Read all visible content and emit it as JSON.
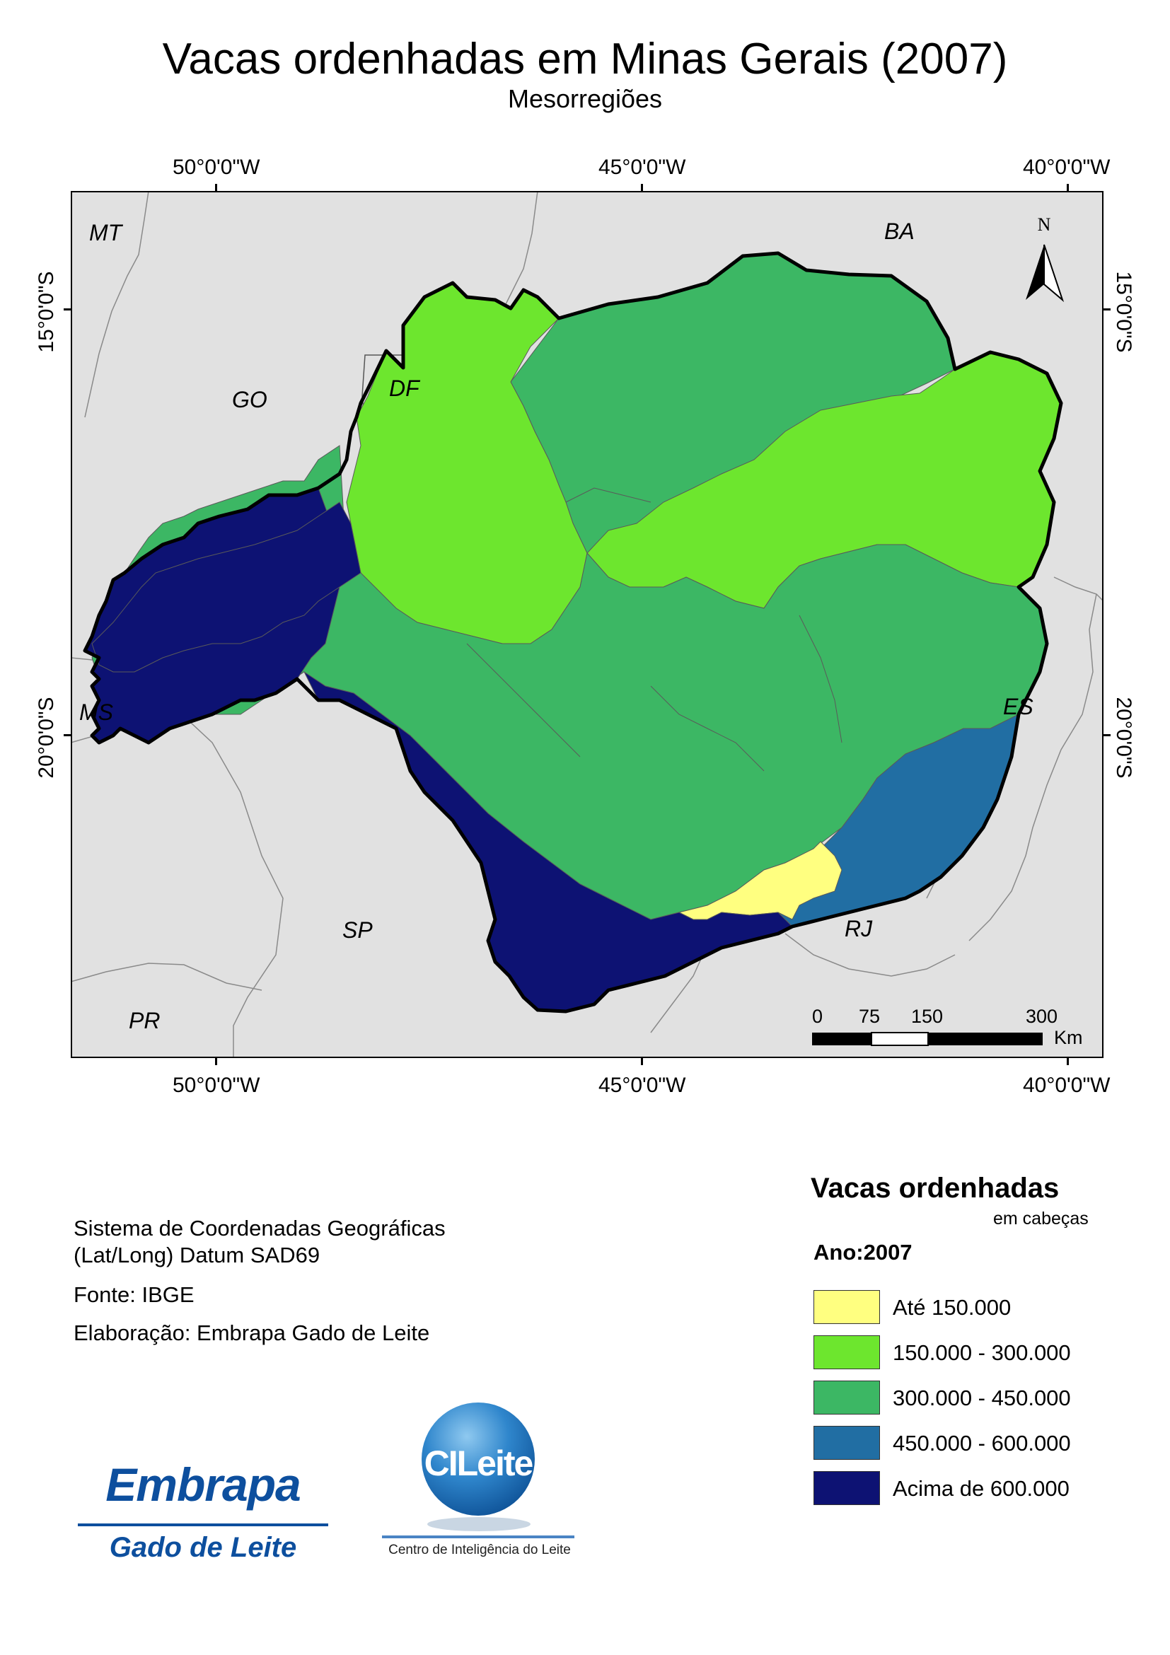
{
  "title": "Vacas ordenhadas em Minas Gerais (2007)",
  "subtitle": "Mesorregiões",
  "graticule": {
    "longitudes": [
      "50°0'0\"W",
      "45°0'0\"W",
      "40°0'0\"W"
    ],
    "latitudes": [
      "15°0'0\"S",
      "20°0'0\"S"
    ]
  },
  "map": {
    "north_label": "N",
    "states": {
      "mt": "MT",
      "go": "GO",
      "df": "DF",
      "ba": "BA",
      "ms": "MS",
      "es": "ES",
      "sp": "SP",
      "rj": "RJ",
      "pr": "PR"
    },
    "scale": {
      "t0": "0",
      "t1": "75",
      "t2": "150",
      "t3": "300",
      "unit": "Km"
    },
    "colors": {
      "background": "#e1e1e1",
      "class1": "#ffff80",
      "class2": "#6de62e",
      "class3": "#3cb764",
      "class4": "#216ea3",
      "class5": "#0d1273"
    }
  },
  "info": {
    "line1": "Sistema de Coordenadas Geográficas",
    "line2": "(Lat/Long) Datum SAD69",
    "source": "Fonte: IBGE",
    "author": "Elaboração: Embrapa Gado de Leite"
  },
  "legend": {
    "title": "Vacas ordenhadas",
    "units": "em cabeças",
    "year": "Ano:2007",
    "classes": [
      {
        "label": "Até 150.000",
        "color": "#ffff80"
      },
      {
        "label": "150.000 - 300.000",
        "color": "#6de62e"
      },
      {
        "label": "300.000 - 450.000",
        "color": "#3cb764"
      },
      {
        "label": "450.000 - 600.000",
        "color": "#216ea3"
      },
      {
        "label": "Acima de 600.000",
        "color": "#0d1273"
      }
    ]
  },
  "logos": {
    "embrapa": "Embrapa",
    "embrapa_sub": "Gado de Leite",
    "cileite": "CILeite",
    "cileite_caption": "Centro de Inteligência do Leite"
  }
}
